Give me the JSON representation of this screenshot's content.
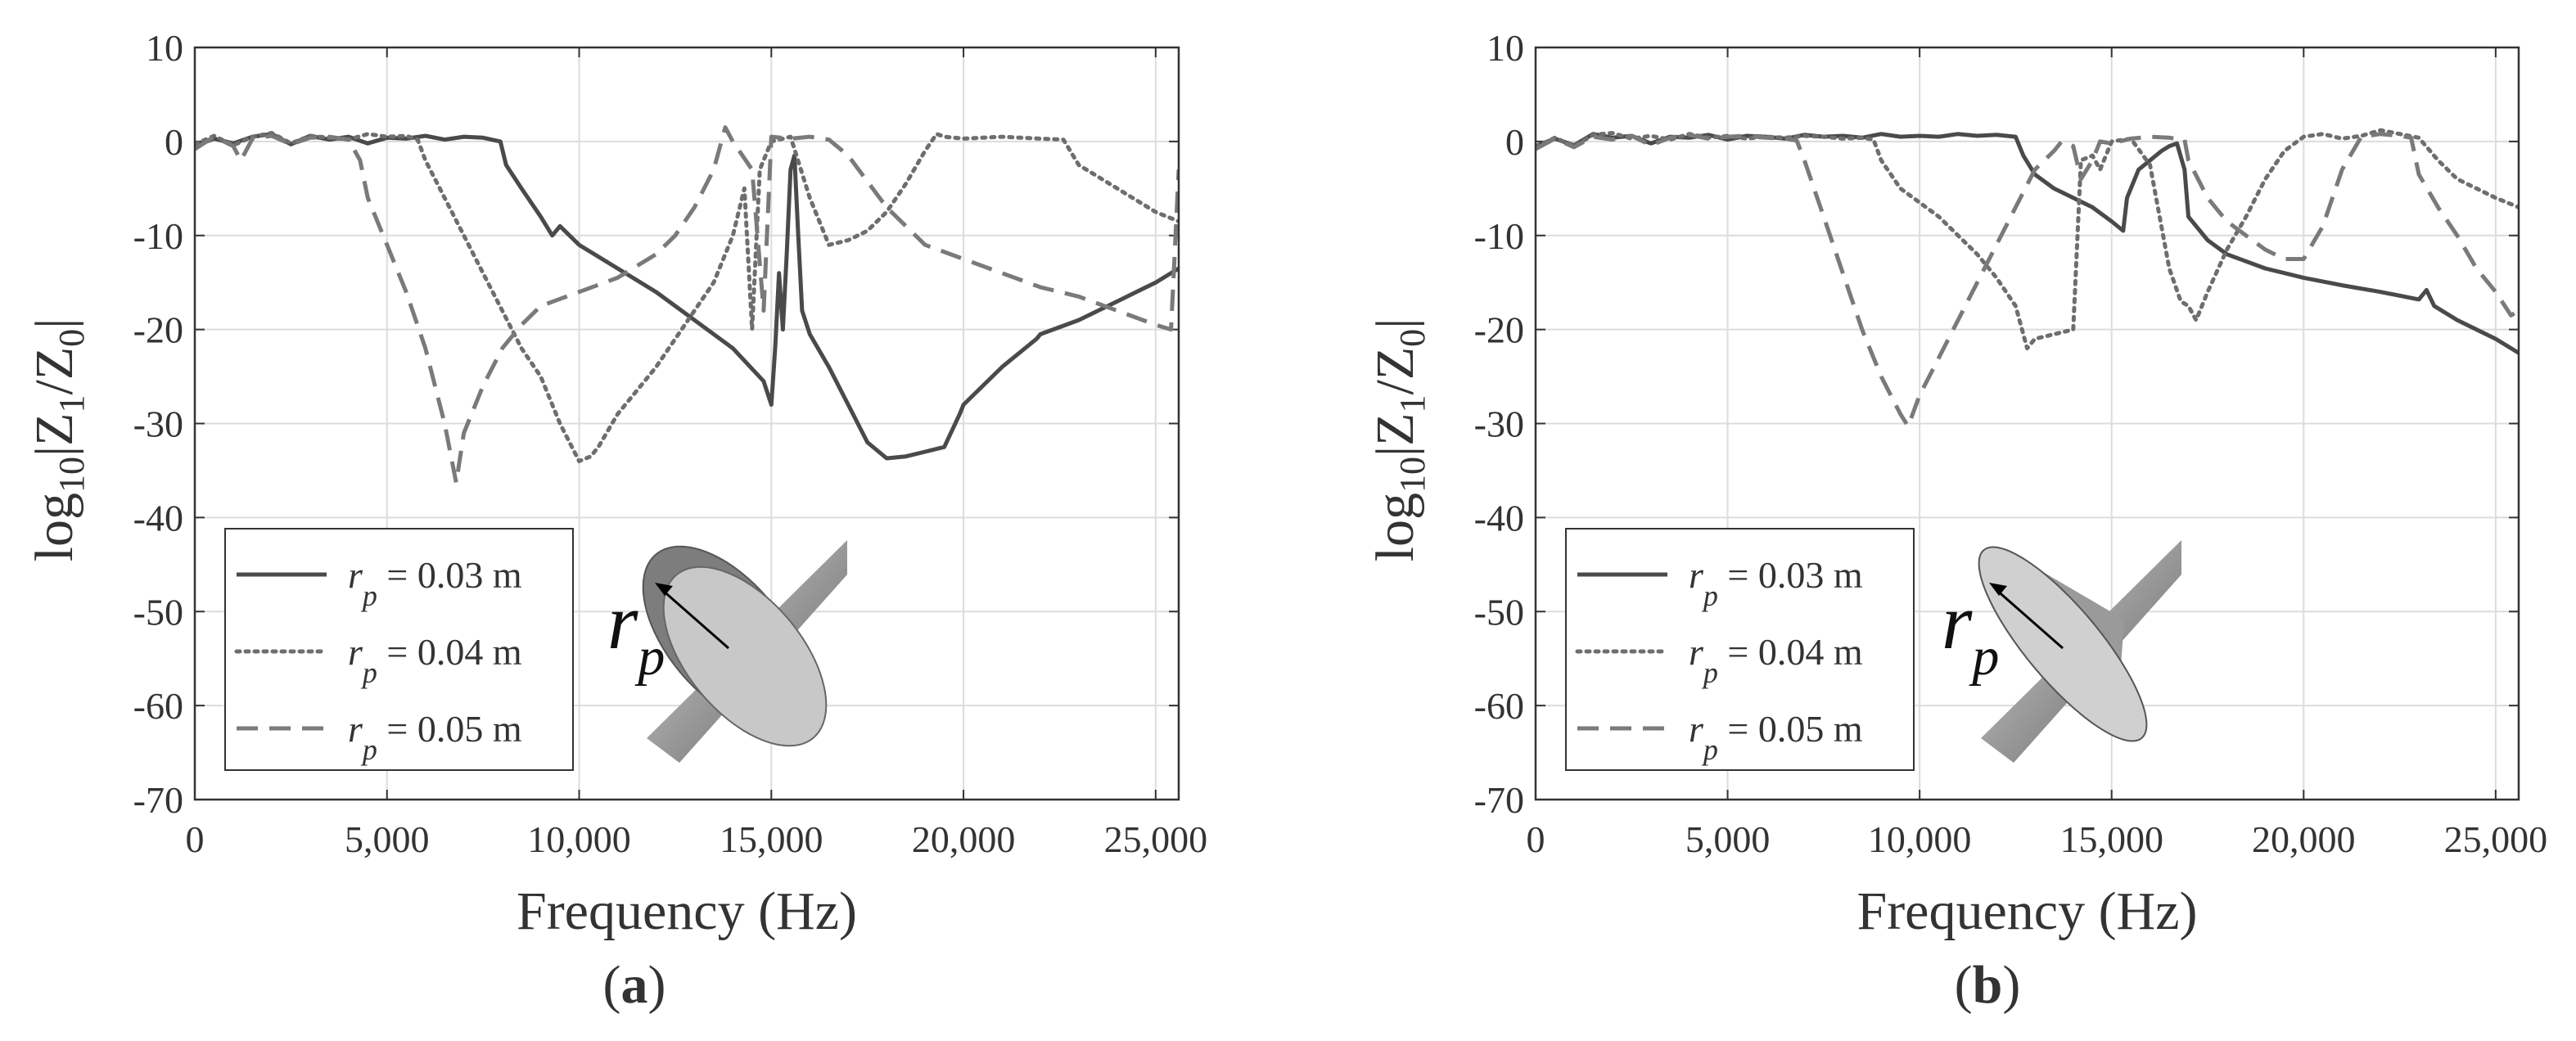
{
  "figure": {
    "panels": [
      {
        "label_open": "(",
        "label_letter": "a",
        "label_close": ")",
        "inset_symbol": "r",
        "inset_subscript": "p",
        "inset_shape": "pipe-with-cylindrical-disc"
      },
      {
        "label_open": "(",
        "label_letter": "b",
        "label_close": ")",
        "inset_symbol": "r",
        "inset_subscript": "p",
        "inset_shape": "pipe-with-conical-disc"
      }
    ],
    "colors": {
      "solid": "#4a4a4a",
      "dotted": "#6e6e6e",
      "dashed": "#7a7a7a",
      "grid": "#dcdcdc",
      "axis": "#333333"
    }
  },
  "chart_data": [
    {
      "type": "line",
      "panel": "a",
      "title": "",
      "xlabel": "Frequency (Hz)",
      "ylabel": {
        "base": "log",
        "base_sub": "10",
        "expr_part1": "|Z",
        "sub1": "1",
        "expr_part2": "/Z",
        "sub2": "0",
        "expr_part3": "|"
      },
      "xlim": [
        0,
        25600
      ],
      "ylim": [
        -70,
        10
      ],
      "xticks": [
        0,
        5000,
        10000,
        15000,
        20000,
        25000
      ],
      "xtick_labels": [
        "0",
        "5,000",
        "10,000",
        "15,000",
        "20,000",
        "25,000"
      ],
      "yticks": [
        10,
        0,
        -10,
        -20,
        -30,
        -40,
        -50,
        -60,
        -70
      ],
      "ytick_labels": [
        "10",
        "0",
        "-10",
        "-20",
        "-30",
        "-40",
        "-50",
        "-60",
        "-70"
      ],
      "grid": true,
      "legend_position": "bottom-left",
      "series": [
        {
          "name": "0.03 m",
          "legend_symbol": "r",
          "legend_sub": "p",
          "legend_eq": " = ",
          "style": "solid",
          "x": [
            0,
            500,
            1000,
            1500,
            2000,
            2500,
            3000,
            3500,
            4000,
            4500,
            5000,
            5500,
            6000,
            6500,
            7000,
            7500,
            7950,
            8100,
            8500,
            9000,
            9300,
            9500,
            10000,
            11000,
            12000,
            13000,
            14000,
            14800,
            15000,
            15100,
            15200,
            15300,
            15400,
            15500,
            15600,
            15700,
            15800,
            16000,
            16500,
            17000,
            17500,
            18000,
            18500,
            19000,
            19500,
            19900,
            20000,
            21000,
            21900,
            22000,
            23000,
            24000,
            25000,
            25600
          ],
          "y": [
            -0.5,
            0.3,
            -0.2,
            0.5,
            0.8,
            -0.3,
            0.6,
            0.2,
            0.5,
            -0.2,
            0.4,
            0.3,
            0.6,
            0.2,
            0.5,
            0.4,
            0.0,
            -2.5,
            -5,
            -8,
            -10,
            -9,
            -11,
            -13.5,
            -16,
            -19,
            -22,
            -25.5,
            -28,
            -22,
            -14,
            -20,
            -12,
            -3,
            -1.5,
            -10,
            -18,
            -20.5,
            -24,
            -28,
            -32,
            -33.7,
            -33.5,
            -33,
            -32.5,
            -29,
            -28,
            -24,
            -21,
            -20.5,
            -19,
            -17,
            -15,
            -13.5
          ]
        },
        {
          "name": "0.04 m",
          "legend_symbol": "r",
          "legend_sub": "p",
          "legend_eq": " = ",
          "style": "dotted",
          "x": [
            0,
            500,
            1000,
            1500,
            2000,
            2500,
            3000,
            3500,
            4000,
            4500,
            5000,
            5500,
            5800,
            6000,
            6500,
            7000,
            7500,
            8000,
            8500,
            9000,
            9500,
            10000,
            10300,
            10500,
            11000,
            11500,
            12000,
            12500,
            13000,
            13500,
            14000,
            14300,
            14500,
            14700,
            15000,
            15500,
            16000,
            16500,
            17000,
            17500,
            18000,
            18500,
            19000,
            19300,
            19500,
            20000,
            21000,
            22000,
            22600,
            23000,
            24000,
            25000,
            25600
          ],
          "y": [
            -0.3,
            0.6,
            -0.4,
            0.5,
            0.9,
            -0.2,
            0.6,
            0.4,
            0.2,
            0.8,
            0.5,
            0.6,
            0.2,
            -2,
            -6,
            -10,
            -14,
            -18,
            -22,
            -25,
            -30,
            -34,
            -33.5,
            -32.5,
            -29,
            -26.5,
            -24,
            -21,
            -18,
            -15,
            -10,
            -5,
            -20,
            -3,
            0,
            0.5,
            -6,
            -11,
            -10.5,
            -9.5,
            -7.5,
            -4.5,
            -1,
            0.8,
            0.5,
            0.3,
            0.5,
            0.3,
            0.2,
            -2.5,
            -5,
            -7.5,
            -8.5
          ]
        },
        {
          "name": "0.05 m",
          "legend_symbol": "r",
          "legend_sub": "p",
          "legend_eq": " = ",
          "style": "dashed",
          "x": [
            0,
            500,
            1000,
            1200,
            1500,
            2000,
            2500,
            3000,
            3500,
            4000,
            4300,
            4500,
            5000,
            5500,
            6000,
            6500,
            6800,
            7000,
            7500,
            8000,
            8500,
            9000,
            10000,
            11000,
            12000,
            12500,
            13000,
            13500,
            13800,
            14000,
            14500,
            14800,
            15000,
            15500,
            16000,
            16500,
            17000,
            18000,
            19000,
            20000,
            21000,
            22000,
            23000,
            24000,
            25000,
            25400,
            25600
          ],
          "y": [
            -0.8,
            0.5,
            -0.5,
            -2,
            0.3,
            0.6,
            -0.3,
            0.4,
            0.5,
            0.2,
            -2,
            -6,
            -11,
            -16,
            -22,
            -30,
            -36.3,
            -31,
            -26,
            -22,
            -19.5,
            -17.5,
            -16,
            -14.5,
            -12,
            -10,
            -7,
            -3,
            1.5,
            0,
            -3,
            -18,
            0.5,
            0.3,
            0.5,
            0.2,
            -1.5,
            -7,
            -11,
            -12.5,
            -14,
            -15.5,
            -16.5,
            -18,
            -19.5,
            -20,
            -3
          ]
        }
      ]
    },
    {
      "type": "line",
      "panel": "b",
      "title": "",
      "xlabel": "Frequency (Hz)",
      "ylabel": {
        "base": "log",
        "base_sub": "10",
        "expr_part1": "|Z",
        "sub1": "1",
        "expr_part2": "/Z",
        "sub2": "0",
        "expr_part3": "|"
      },
      "xlim": [
        0,
        25600
      ],
      "ylim": [
        -70,
        10
      ],
      "xticks": [
        0,
        5000,
        10000,
        15000,
        20000,
        25000
      ],
      "xtick_labels": [
        "0",
        "5,000",
        "10,000",
        "15,000",
        "20,000",
        "25,000"
      ],
      "yticks": [
        10,
        0,
        -10,
        -20,
        -30,
        -40,
        -50,
        -60,
        -70
      ],
      "ytick_labels": [
        "10",
        "0",
        "-10",
        "-20",
        "-30",
        "-40",
        "-50",
        "-60",
        "-70"
      ],
      "grid": true,
      "legend_position": "bottom-left",
      "series": [
        {
          "name": "0.03 m",
          "legend_symbol": "r",
          "legend_sub": "p",
          "legend_eq": " = ",
          "style": "solid",
          "x": [
            0,
            500,
            1000,
            1500,
            2000,
            2500,
            3000,
            3500,
            4000,
            4500,
            5000,
            5500,
            6000,
            6500,
            7000,
            7500,
            8000,
            8500,
            9000,
            9500,
            10000,
            10500,
            11000,
            11500,
            12000,
            12500,
            12700,
            13000,
            13500,
            14000,
            14500,
            15000,
            15300,
            15400,
            15500,
            15700,
            16000,
            16300,
            16500,
            16700,
            16900,
            17000,
            17500,
            18000,
            19000,
            20000,
            21000,
            22000,
            23000,
            23200,
            23400,
            24000,
            25000,
            25600
          ],
          "y": [
            -0.5,
            0.3,
            -0.4,
            0.8,
            0.4,
            0.6,
            -0.2,
            0.5,
            0.4,
            0.7,
            0.2,
            0.6,
            0.5,
            0.3,
            0.7,
            0.5,
            0.6,
            0.4,
            0.8,
            0.5,
            0.6,
            0.5,
            0.8,
            0.6,
            0.7,
            0.5,
            -1.5,
            -3.5,
            -5,
            -6,
            -7,
            -8.5,
            -9.5,
            -6,
            -5,
            -3,
            -2,
            -1,
            -0.5,
            -0.2,
            -3,
            -8,
            -10.5,
            -12,
            -13.5,
            -14.5,
            -15.3,
            -16,
            -16.8,
            -15.8,
            -17.5,
            -19,
            -21,
            -22.5
          ]
        },
        {
          "name": "0.04 m",
          "legend_symbol": "r",
          "legend_sub": "p",
          "legend_eq": " = ",
          "style": "dotted",
          "x": [
            0,
            500,
            1000,
            1500,
            2000,
            2500,
            3000,
            3500,
            4000,
            4500,
            5000,
            5500,
            6000,
            6500,
            7000,
            7500,
            8000,
            8500,
            8800,
            9000,
            9500,
            10000,
            10500,
            11000,
            11500,
            12000,
            12500,
            12800,
            13000,
            13500,
            14000,
            14200,
            14500,
            14700,
            15000,
            15500,
            16000,
            16500,
            16800,
            17000,
            17200,
            17500,
            18000,
            18500,
            19000,
            19500,
            20000,
            20500,
            21000,
            21500,
            22000,
            22500,
            23000,
            23500,
            24000,
            25000,
            25600
          ],
          "y": [
            -0.6,
            0.4,
            -0.5,
            0.7,
            0.9,
            0.3,
            0.6,
            0.2,
            0.8,
            0.4,
            0.6,
            0.3,
            0.5,
            0.4,
            0.6,
            0.5,
            0.3,
            0.4,
            0.2,
            -2,
            -5,
            -6.5,
            -8,
            -10,
            -12,
            -14.5,
            -17.5,
            -22,
            -21,
            -20.5,
            -20,
            -2,
            -1.5,
            -3,
            0,
            0.3,
            -2.5,
            -13.5,
            -17,
            -17.5,
            -19,
            -16,
            -11.5,
            -8,
            -4,
            -1,
            0.5,
            0.8,
            0.3,
            0.6,
            1.2,
            0.8,
            0.4,
            -2,
            -4,
            -6,
            -7
          ]
        },
        {
          "name": "0.05 m",
          "legend_symbol": "r",
          "legend_sub": "p",
          "legend_eq": " = ",
          "style": "dashed",
          "x": [
            0,
            500,
            1000,
            1500,
            2000,
            2500,
            3000,
            3500,
            4000,
            4500,
            5000,
            5500,
            6000,
            6500,
            6800,
            7000,
            7500,
            8000,
            8500,
            9000,
            9500,
            9700,
            10000,
            10500,
            11000,
            11500,
            12000,
            12500,
            13000,
            13500,
            13700,
            14000,
            14200,
            14500,
            14700,
            15000,
            15500,
            16000,
            16500,
            16900,
            17000,
            17500,
            18000,
            18500,
            19000,
            19500,
            20000,
            20500,
            21000,
            21500,
            22000,
            22500,
            22800,
            23000,
            23500,
            24000,
            24500,
            25000,
            25400,
            25600
          ],
          "y": [
            -0.8,
            0.3,
            -0.6,
            0.5,
            0.2,
            0.6,
            -0.4,
            0.4,
            0.7,
            0.3,
            0.5,
            0.6,
            0.4,
            0.3,
            0.1,
            -2,
            -8,
            -14,
            -20,
            -25,
            -29,
            -30.3,
            -27,
            -23,
            -19,
            -15,
            -11,
            -7,
            -3,
            -1,
            0,
            -0.5,
            -4,
            -2,
            0,
            -0.2,
            0.3,
            0.5,
            0.4,
            0.2,
            -2,
            -6,
            -8.5,
            -10,
            -11.5,
            -12.5,
            -12.5,
            -9,
            -3,
            0.5,
            0.8,
            0.6,
            0.4,
            -3.5,
            -7,
            -10,
            -13.5,
            -16,
            -18.5,
            -18
          ]
        }
      ]
    }
  ]
}
